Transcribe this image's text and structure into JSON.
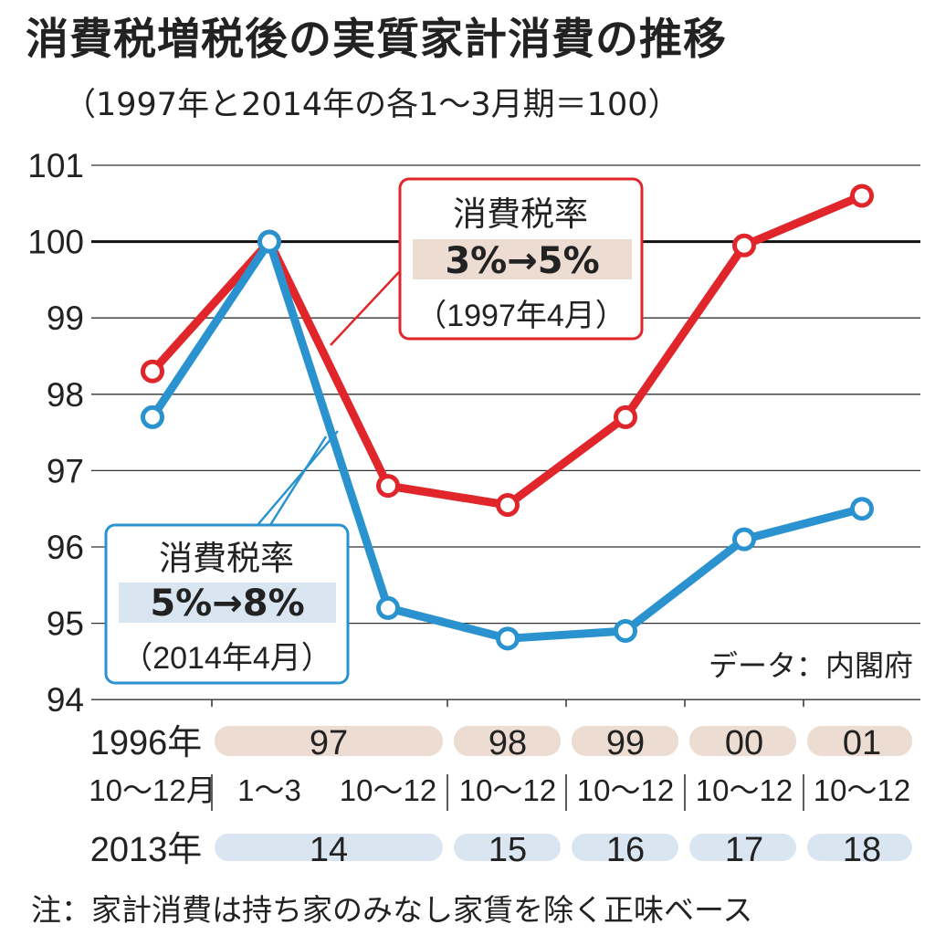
{
  "chart_data": {
    "type": "line",
    "title": "消費税増税後の実質家計消費の推移",
    "subtitle": "（1997年と2014年の各1～3月期＝100）",
    "ylim": [
      94,
      101
    ],
    "yticks": [
      "101",
      "100",
      "99",
      "98",
      "97",
      "96",
      "95",
      "94"
    ],
    "x_quarters": [
      "10～12月",
      "1～3",
      "10～12",
      "10～12",
      "10～12",
      "10～12",
      "10～12"
    ],
    "x_years_red": [
      "1996年",
      "97",
      "98",
      "99",
      "00",
      "01"
    ],
    "x_years_blue": [
      "2013年",
      "14",
      "15",
      "16",
      "17",
      "18"
    ],
    "series": [
      {
        "name": "消費税率 3%→5%（1997年4月）",
        "color": "#e0262a",
        "values": [
          98.3,
          100.0,
          96.8,
          96.55,
          97.7,
          99.95,
          100.6
        ]
      },
      {
        "name": "消費税率 5%→8%（2014年4月）",
        "color": "#2a93cf",
        "values": [
          97.7,
          100.0,
          95.2,
          94.8,
          94.9,
          96.1,
          96.5
        ]
      }
    ],
    "callouts": [
      {
        "title": "消費税率",
        "rate": "3%→5%",
        "date": "（1997年4月）",
        "color": "#e0262a",
        "fill": "#ecdcd2"
      },
      {
        "title": "消費税率",
        "rate": "5%→8%",
        "date": "（2014年4月）",
        "color": "#2a93cf",
        "fill": "#d9e6f1"
      }
    ],
    "source": "データ：内閣府",
    "note": "注：家計消費は持ち家のみなし家賃を除く正味ベース",
    "grid": true
  }
}
